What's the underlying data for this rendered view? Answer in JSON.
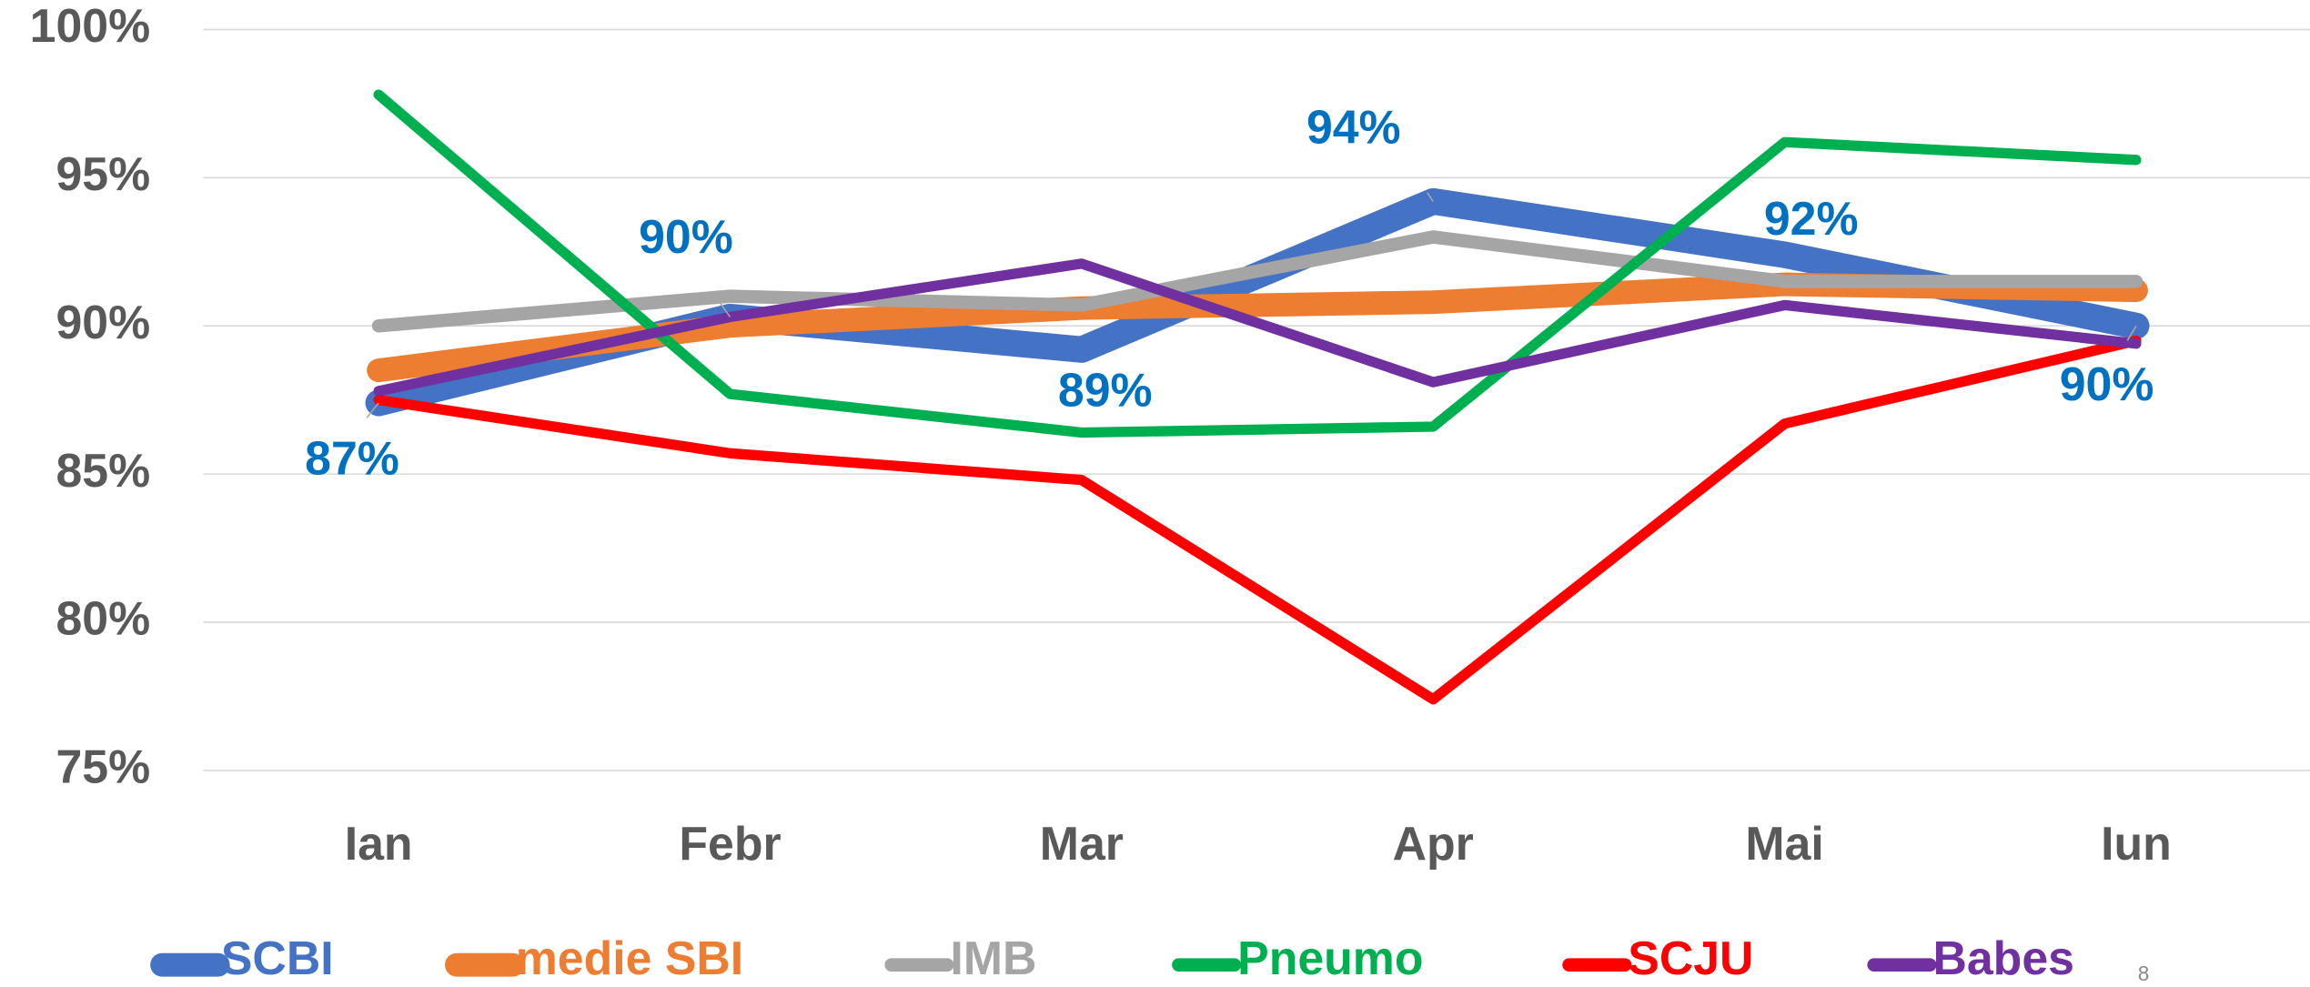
{
  "chart_data": {
    "type": "line",
    "categories": [
      "Ian",
      "Febr",
      "Mar",
      "Apr",
      "Mai",
      "Iun"
    ],
    "series": [
      {
        "name": "SCBI",
        "color": "#4472c4",
        "values": [
          87.4,
          90.3,
          89.2,
          94.2,
          92.4,
          90.0
        ],
        "value_labels": [
          "87%",
          "90%",
          "89%",
          "94%",
          "92%",
          "90%"
        ]
      },
      {
        "name": "medie SBI",
        "color": "#ed7d31",
        "values": [
          88.5,
          90.0,
          90.6,
          90.8,
          91.4,
          91.2
        ]
      },
      {
        "name": "IMB",
        "color": "#a5a5a5",
        "values": [
          90.0,
          91.0,
          90.7,
          93.0,
          91.5,
          91.5
        ]
      },
      {
        "name": "Pneumo",
        "color": "#00b050",
        "values": [
          97.8,
          87.7,
          86.4,
          86.6,
          96.2,
          95.6
        ]
      },
      {
        "name": "SCJU",
        "color": "#ff0000",
        "values": [
          87.5,
          85.7,
          84.8,
          77.4,
          86.7,
          89.5
        ]
      },
      {
        "name": "Babes",
        "color": "#7030a0",
        "values": [
          87.8,
          90.3,
          92.1,
          88.1,
          90.7,
          89.4
        ]
      }
    ],
    "ylim": [
      75,
      100
    ],
    "yticks": [
      {
        "value": 75,
        "label": "75%"
      },
      {
        "value": 80,
        "label": "80%"
      },
      {
        "value": 85,
        "label": "85%"
      },
      {
        "value": 90,
        "label": "90%"
      },
      {
        "value": 95,
        "label": "95%"
      },
      {
        "value": 100,
        "label": "100%"
      }
    ],
    "grid": true,
    "legend": "bottom",
    "page_number": "8"
  }
}
